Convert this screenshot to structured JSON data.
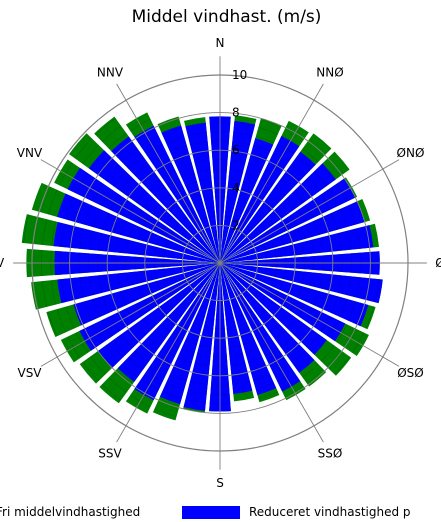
{
  "chart_data": {
    "type": "polar-bar",
    "title": "Middel vindhast. (m/s)",
    "rlim": [
      0,
      10
    ],
    "radial_ticks": [
      2,
      4,
      6,
      8,
      10
    ],
    "grid": true,
    "direction_labels": [
      "N",
      "NNØ",
      "ØNØ",
      "Ø",
      "ØSØ",
      "SSØ",
      "S",
      "SSV",
      "VSV",
      "V",
      "VNV",
      "NNV"
    ],
    "sectors": 36,
    "series": [
      {
        "name": "Fri middelvindhastighed",
        "color": "#008000",
        "values": [
          7.8,
          7.9,
          8.0,
          8.4,
          8.5,
          8.5,
          8.1,
          8.3,
          8.5,
          8.5,
          8.7,
          8.6,
          8.8,
          8.6,
          8.1,
          8.1,
          7.7,
          7.4,
          7.9,
          8.0,
          8.7,
          8.9,
          9.2,
          9.2,
          9.4,
          9.6,
          10.1,
          10.3,
          10.6,
          10.4,
          9.8,
          9.9,
          9.6,
          8.9,
          8.1,
          7.8
        ]
      },
      {
        "name": "Reduceret vindhastighed p",
        "color": "#0000ff",
        "values": [
          7.8,
          7.6,
          6.9,
          7.5,
          7.3,
          7.6,
          8.0,
          8.0,
          8.2,
          8.5,
          8.7,
          8.2,
          7.4,
          7.0,
          7.2,
          7.6,
          7.3,
          7.0,
          7.9,
          7.9,
          7.8,
          8.1,
          7.8,
          8.0,
          8.3,
          8.1,
          8.7,
          8.8,
          8.9,
          9.0,
          9.0,
          8.6,
          8.3,
          8.1,
          7.6,
          7.5
        ]
      }
    ]
  }
}
